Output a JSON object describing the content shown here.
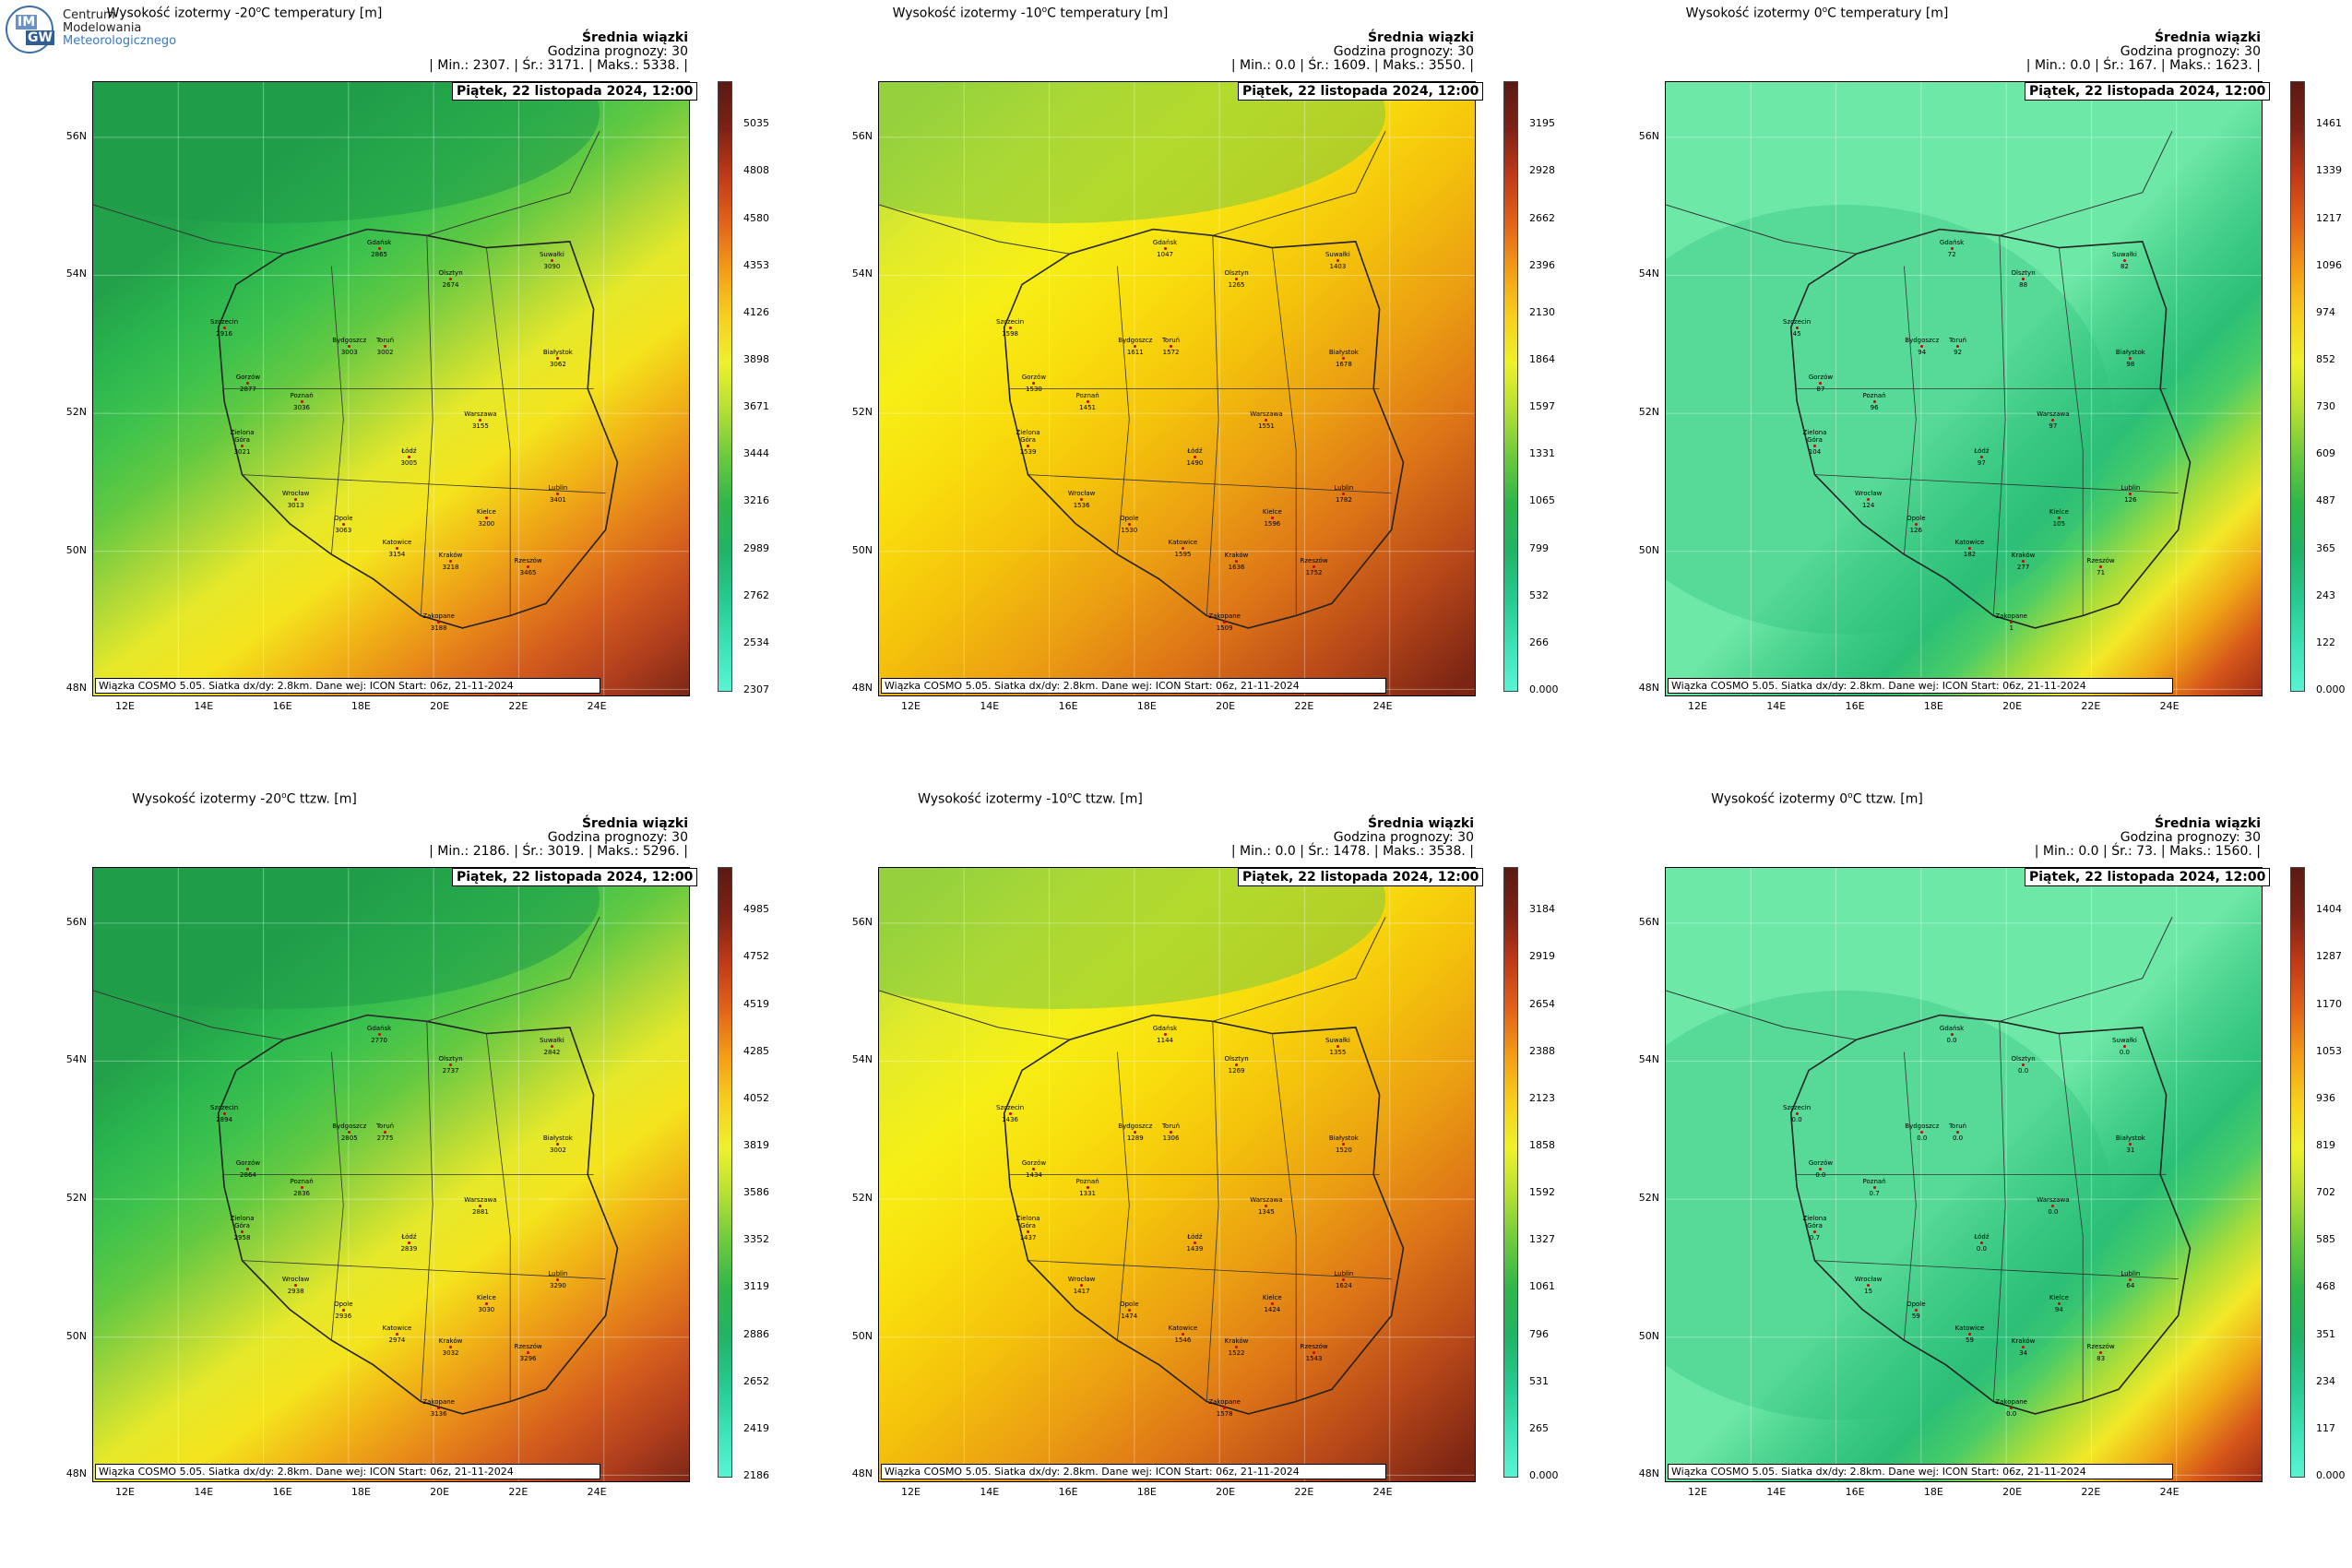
{
  "logo": {
    "line1": "Centrum",
    "line2": "Modelowania",
    "line3": "Meteorologicznego",
    "mark1": "IM",
    "mark2": "GW"
  },
  "common": {
    "info_title": "Średnia wiązki",
    "forecast": "Godzina prognozy: 30",
    "date": "Piątek, 22 listopada 2024, 12:00",
    "footer": "Wiązka COSMO 5.05. Siatka dx/dy: 2.8km. Dane wej: ICON Start: 06z, 21-11-2024",
    "lat_labels": [
      "56N",
      "54N",
      "52N",
      "50N",
      "48N"
    ],
    "lon_labels": [
      "12E",
      "14E",
      "16E",
      "18E",
      "20E",
      "22E",
      "24E"
    ]
  },
  "panels": [
    {
      "title_pre": "Wysokość izotermy -20",
      "title_post": "C temperatury [m]",
      "stats": "| Min.:    2307. | Śr.:     3171. | Maks.:    5338. |",
      "scheme": "green",
      "ticks": [
        "5035",
        "4808",
        "4580",
        "4353",
        "4126",
        "3898",
        "3671",
        "3444",
        "3216",
        "2989",
        "2762",
        "2534",
        "2307"
      ],
      "cities": [
        {
          "name": "Gdańsk",
          "v": "2865"
        },
        {
          "name": "Olsztyn",
          "v": "2674"
        },
        {
          "name": "Suwałki",
          "v": "3090"
        },
        {
          "name": "Szczecin",
          "v": "2916"
        },
        {
          "name": "Bydgoszcz",
          "v": "3003"
        },
        {
          "name": "Toruń",
          "v": "3002"
        },
        {
          "name": "Białystok",
          "v": "3062"
        },
        {
          "name": "Gorzów",
          "v": "2877"
        },
        {
          "name": "Poznań",
          "v": "3036"
        },
        {
          "name": "Warszawa",
          "v": "3155"
        },
        {
          "name": "Zielona Góra",
          "v": "3021"
        },
        {
          "name": "Łódź",
          "v": "3005"
        },
        {
          "name": "Lublin",
          "v": "3401"
        },
        {
          "name": "Wrocław",
          "v": "3013"
        },
        {
          "name": "Kielce",
          "v": "3200"
        },
        {
          "name": "Opole",
          "v": "3063"
        },
        {
          "name": "Katowice",
          "v": "3154"
        },
        {
          "name": "Kraków",
          "v": "3218"
        },
        {
          "name": "Rzeszów",
          "v": "3465"
        },
        {
          "name": "Zakopane",
          "v": "3188"
        }
      ]
    },
    {
      "title_pre": "Wysokość izotermy -10",
      "title_post": "C temperatury [m]",
      "stats": "| Min.:      0.0 | Śr.:     1609. | Maks.:    3550. |",
      "scheme": "yellow",
      "ticks": [
        "3195",
        "2928",
        "2662",
        "2396",
        "2130",
        "1864",
        "1597",
        "1331",
        "1065",
        "799",
        "532",
        "266",
        "0.000"
      ],
      "cities": [
        {
          "name": "Gdańsk",
          "v": "1047"
        },
        {
          "name": "Olsztyn",
          "v": "1265"
        },
        {
          "name": "Suwałki",
          "v": "1403"
        },
        {
          "name": "Szczecin",
          "v": "1598"
        },
        {
          "name": "Bydgoszcz",
          "v": "1611"
        },
        {
          "name": "Toruń",
          "v": "1572"
        },
        {
          "name": "Białystok",
          "v": "1678"
        },
        {
          "name": "Gorzów",
          "v": "1530"
        },
        {
          "name": "Poznań",
          "v": "1451"
        },
        {
          "name": "Warszawa",
          "v": "1551"
        },
        {
          "name": "Zielona Góra",
          "v": "1539"
        },
        {
          "name": "Łódź",
          "v": "1490"
        },
        {
          "name": "Lublin",
          "v": "1782"
        },
        {
          "name": "Wrocław",
          "v": "1536"
        },
        {
          "name": "Kielce",
          "v": "1596"
        },
        {
          "name": "Opole",
          "v": "1530"
        },
        {
          "name": "Katowice",
          "v": "1595"
        },
        {
          "name": "Kraków",
          "v": "1636"
        },
        {
          "name": "Rzeszów",
          "v": "1752"
        },
        {
          "name": "Zakopane",
          "v": "1509"
        }
      ]
    },
    {
      "title_pre": "Wysokość izotermy 0",
      "title_post": "C temperatury [m]",
      "stats": "| Min.:      0.0 | Śr.:      167. | Maks.:    1623. |",
      "scheme": "mint",
      "ticks": [
        "1461",
        "1339",
        "1217",
        "1096",
        "974",
        "852",
        "730",
        "609",
        "487",
        "365",
        "243",
        "122",
        "0.000"
      ],
      "cities": [
        {
          "name": "Gdańsk",
          "v": "72"
        },
        {
          "name": "Olsztyn",
          "v": "88"
        },
        {
          "name": "Suwałki",
          "v": "82"
        },
        {
          "name": "Szczecin",
          "v": "45"
        },
        {
          "name": "Bydgoszcz",
          "v": "94"
        },
        {
          "name": "Toruń",
          "v": "92"
        },
        {
          "name": "Białystok",
          "v": "98"
        },
        {
          "name": "Gorzów",
          "v": "87"
        },
        {
          "name": "Poznań",
          "v": "96"
        },
        {
          "name": "Warszawa",
          "v": "97"
        },
        {
          "name": "Zielona Góra",
          "v": "104"
        },
        {
          "name": "Łódź",
          "v": "97"
        },
        {
          "name": "Lublin",
          "v": "126"
        },
        {
          "name": "Wrocław",
          "v": "124"
        },
        {
          "name": "Kielce",
          "v": "105"
        },
        {
          "name": "Opole",
          "v": "126"
        },
        {
          "name": "Katowice",
          "v": "182"
        },
        {
          "name": "Kraków",
          "v": "277"
        },
        {
          "name": "Rzeszów",
          "v": "71"
        },
        {
          "name": "Zakopane",
          "v": "1"
        }
      ]
    },
    {
      "title_pre": "Wysokość izotermy -20",
      "title_post": "C ttzw. [m]",
      "stats": "| Min.:    2186. | Śr.:     3019. | Maks.:    5296. |",
      "scheme": "green",
      "ticks": [
        "4985",
        "4752",
        "4519",
        "4285",
        "4052",
        "3819",
        "3586",
        "3352",
        "3119",
        "2886",
        "2652",
        "2419",
        "2186"
      ],
      "cities": [
        {
          "name": "Gdańsk",
          "v": "2770"
        },
        {
          "name": "Olsztyn",
          "v": "2737"
        },
        {
          "name": "Suwałki",
          "v": "2842"
        },
        {
          "name": "Szczecin",
          "v": "2894"
        },
        {
          "name": "Bydgoszcz",
          "v": "2805"
        },
        {
          "name": "Toruń",
          "v": "2775"
        },
        {
          "name": "Białystok",
          "v": "3002"
        },
        {
          "name": "Gorzów",
          "v": "2864"
        },
        {
          "name": "Poznań",
          "v": "2836"
        },
        {
          "name": "Warszawa",
          "v": "2881"
        },
        {
          "name": "Zielona Góra",
          "v": "2958"
        },
        {
          "name": "Łódź",
          "v": "2839"
        },
        {
          "name": "Lublin",
          "v": "3290"
        },
        {
          "name": "Wrocław",
          "v": "2938"
        },
        {
          "name": "Kielce",
          "v": "3030"
        },
        {
          "name": "Opole",
          "v": "2936"
        },
        {
          "name": "Katowice",
          "v": "2974"
        },
        {
          "name": "Kraków",
          "v": "3032"
        },
        {
          "name": "Rzeszów",
          "v": "3296"
        },
        {
          "name": "Zakopane",
          "v": "3136"
        }
      ]
    },
    {
      "title_pre": "Wysokość izotermy -10",
      "title_post": "C ttzw. [m]",
      "stats": "| Min.:      0.0 | Śr.:     1478. | Maks.:    3538. |",
      "scheme": "yellow",
      "ticks": [
        "3184",
        "2919",
        "2654",
        "2388",
        "2123",
        "1858",
        "1592",
        "1327",
        "1061",
        "796",
        "531",
        "265",
        "0.000"
      ],
      "cities": [
        {
          "name": "Gdańsk",
          "v": "1144"
        },
        {
          "name": "Olsztyn",
          "v": "1269"
        },
        {
          "name": "Suwałki",
          "v": "1355"
        },
        {
          "name": "Szczecin",
          "v": "1436"
        },
        {
          "name": "Bydgoszcz",
          "v": "1289"
        },
        {
          "name": "Toruń",
          "v": "1306"
        },
        {
          "name": "Białystok",
          "v": "1520"
        },
        {
          "name": "Gorzów",
          "v": "1434"
        },
        {
          "name": "Poznań",
          "v": "1331"
        },
        {
          "name": "Warszawa",
          "v": "1345"
        },
        {
          "name": "Zielona Góra",
          "v": "1437"
        },
        {
          "name": "Łódź",
          "v": "1439"
        },
        {
          "name": "Lublin",
          "v": "1624"
        },
        {
          "name": "Wrocław",
          "v": "1417"
        },
        {
          "name": "Kielce",
          "v": "1424"
        },
        {
          "name": "Opole",
          "v": "1474"
        },
        {
          "name": "Katowice",
          "v": "1546"
        },
        {
          "name": "Kraków",
          "v": "1522"
        },
        {
          "name": "Rzeszów",
          "v": "1543"
        },
        {
          "name": "Zakopane",
          "v": "1578"
        }
      ]
    },
    {
      "title_pre": "Wysokość izotermy 0",
      "title_post": "C ttzw. [m]",
      "stats": "| Min.:      0.0 | Śr.:       73. | Maks.:    1560. |",
      "scheme": "mint",
      "ticks": [
        "1404",
        "1287",
        "1170",
        "1053",
        "936",
        "819",
        "702",
        "585",
        "468",
        "351",
        "234",
        "117",
        "0.000"
      ],
      "cities": [
        {
          "name": "Gdańsk",
          "v": "0.0"
        },
        {
          "name": "Olsztyn",
          "v": "0.0"
        },
        {
          "name": "Suwałki",
          "v": "0.0"
        },
        {
          "name": "Szczecin",
          "v": "0.0"
        },
        {
          "name": "Bydgoszcz",
          "v": "0.0"
        },
        {
          "name": "Toruń",
          "v": "0.0"
        },
        {
          "name": "Białystok",
          "v": "31"
        },
        {
          "name": "Gorzów",
          "v": "0.0"
        },
        {
          "name": "Poznań",
          "v": "0.7"
        },
        {
          "name": "Warszawa",
          "v": "0.0"
        },
        {
          "name": "Zielona Góra",
          "v": "0.7"
        },
        {
          "name": "Łódź",
          "v": "0.0"
        },
        {
          "name": "Lublin",
          "v": "64"
        },
        {
          "name": "Wrocław",
          "v": "15"
        },
        {
          "name": "Kielce",
          "v": "94"
        },
        {
          "name": "Opole",
          "v": "59"
        },
        {
          "name": "Katowice",
          "v": "59"
        },
        {
          "name": "Kraków",
          "v": "34"
        },
        {
          "name": "Rzeszów",
          "v": "83"
        },
        {
          "name": "Zakopane",
          "v": "0.0"
        }
      ]
    }
  ],
  "colors": {
    "green": {
      "stops": [
        "#23a14a",
        "#2ab54e",
        "#3dc24d",
        "#63c941",
        "#a6d63a",
        "#e5e82a",
        "#f4e41d",
        "#f1b516",
        "#e7871a",
        "#d45d1d",
        "#b23f1d",
        "#7a2717"
      ],
      "bar": [
        "#59f4d3",
        "#3be2b4",
        "#27c88f",
        "#22b366",
        "#2fb54a",
        "#6cc93e",
        "#b4df34",
        "#eef12b",
        "#f7cf1e",
        "#f39c16",
        "#e1621a",
        "#bf3a18",
        "#7e2216",
        "#5a1a12"
      ]
    },
    "yellow": {
      "stops": [
        "#b2dc3a",
        "#e2eb2a",
        "#f6ef16",
        "#f9dd0d",
        "#f4c20b",
        "#eb9f12",
        "#dd7417",
        "#b94919",
        "#7c2514"
      ],
      "bar": [
        "#59f4d3",
        "#3be2b4",
        "#27c88f",
        "#22b366",
        "#2fb54a",
        "#6cc93e",
        "#b4df34",
        "#eef12b",
        "#f7cf1e",
        "#f39c16",
        "#e1621a",
        "#bf3a18",
        "#7e2216",
        "#5a1a12"
      ]
    },
    "mint": {
      "stops": [
        "#6ee8a6",
        "#52d893",
        "#3bca84",
        "#2bbf76",
        "#49cc67",
        "#a5dc3b",
        "#f2e928",
        "#f0a816",
        "#d6561a",
        "#9d2d15"
      ],
      "bar": [
        "#59f4d3",
        "#3be2b4",
        "#27c88f",
        "#22b366",
        "#2fb54a",
        "#6cc93e",
        "#b4df34",
        "#eef12b",
        "#f7cf1e",
        "#f39c16",
        "#e1621a",
        "#bf3a18",
        "#7e2216",
        "#5a1a12"
      ]
    }
  }
}
